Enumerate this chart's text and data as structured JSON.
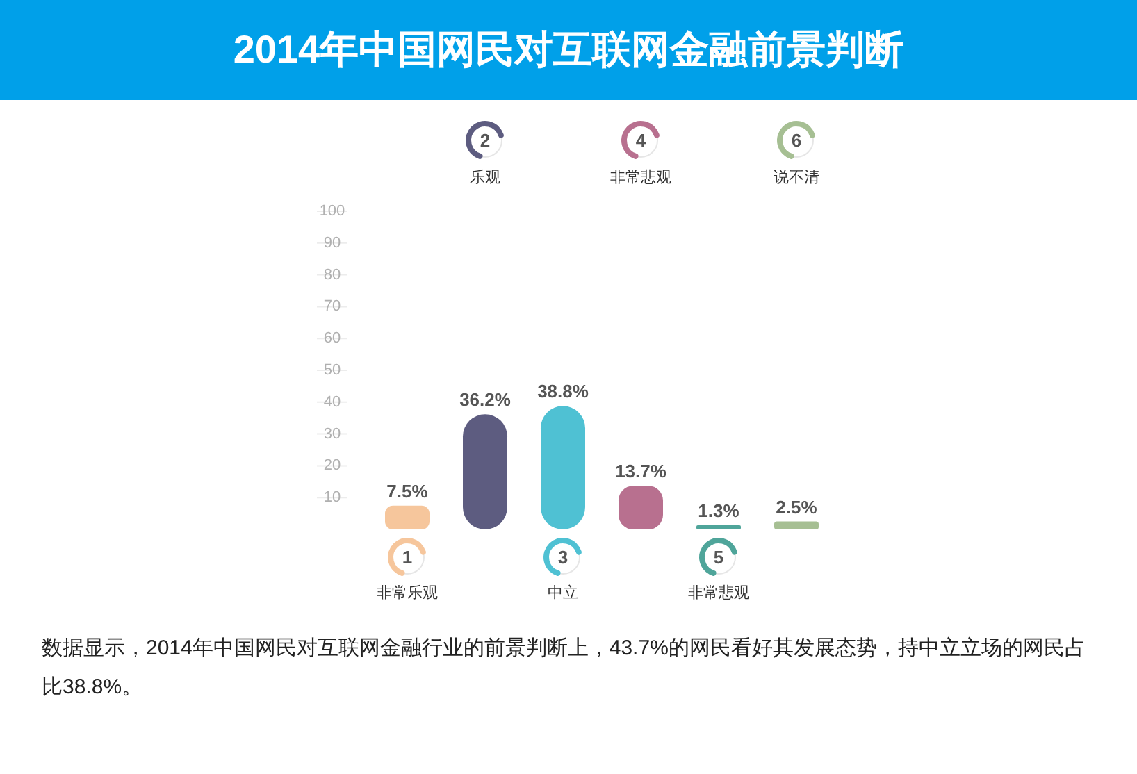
{
  "chart_data": {
    "type": "bar",
    "title": "2014年中国网民对互联网金融前景判断",
    "categories": [
      "非常乐观",
      "乐观",
      "中立",
      "非常悲观",
      "非常悲观",
      "说不清"
    ],
    "values": [
      7.5,
      36.2,
      38.8,
      13.7,
      1.3,
      2.5
    ],
    "colors": [
      "#f6c69c",
      "#5d5c80",
      "#4fc1d3",
      "#b8708f",
      "#4fa59a",
      "#a6bf93"
    ],
    "value_labels": [
      "7.5%",
      "36.2%",
      "38.8%",
      "13.7%",
      "1.3%",
      "2.5%"
    ],
    "ylim": [
      0,
      100
    ],
    "yticks": [
      10,
      20,
      30,
      40,
      50,
      60,
      70,
      80,
      90,
      100
    ],
    "annotations": [
      "1",
      "2",
      "3",
      "4",
      "5",
      "6",
      "数据显示，2014年中国网民对互联网金融行业的前景判断上，43.7%的网民看好其发展态势，持中立立场的网民占比38.8%。"
    ]
  }
}
